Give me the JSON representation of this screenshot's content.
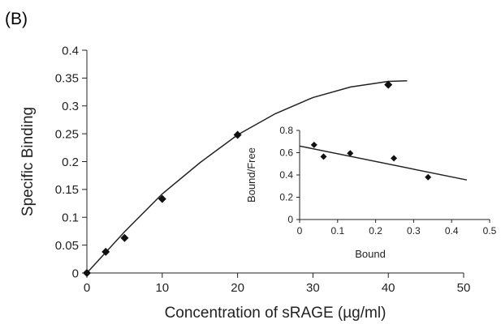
{
  "panel_label": "(B)",
  "chart_data": [
    {
      "type": "scatter",
      "xlabel": "Concentration of sRAGE (µg/ml)",
      "ylabel": "Specific Binding",
      "xlim": [
        0,
        50
      ],
      "ylim": [
        0,
        0.4
      ],
      "xticks": [
        "0",
        "10",
        "20",
        "30",
        "40",
        "50"
      ],
      "yticks": [
        "0",
        "0.05",
        "0.1",
        "0.15",
        "0.2",
        "0.25",
        "0.3",
        "0.35",
        "0.4"
      ],
      "grid": false,
      "points": [
        {
          "x": 0,
          "y": 0
        },
        {
          "x": 2.5,
          "y": 0.038
        },
        {
          "x": 5,
          "y": 0.063
        },
        {
          "x": 10,
          "y": 0.133
        },
        {
          "x": 20,
          "y": 0.248
        },
        {
          "x": 40,
          "y": 0.338
        }
      ],
      "fit_curve": [
        {
          "x": 0,
          "y": 0
        },
        {
          "x": 5,
          "y": 0.074
        },
        {
          "x": 10,
          "y": 0.142
        },
        {
          "x": 15,
          "y": 0.198
        },
        {
          "x": 20,
          "y": 0.248
        },
        {
          "x": 25,
          "y": 0.286
        },
        {
          "x": 30,
          "y": 0.315
        },
        {
          "x": 35,
          "y": 0.334
        },
        {
          "x": 40,
          "y": 0.344
        },
        {
          "x": 42.5,
          "y": 0.345
        }
      ]
    },
    {
      "type": "scatter",
      "xlabel": "Bound",
      "ylabel": "Bound/Free",
      "xlim": [
        0,
        0.5
      ],
      "ylim": [
        0,
        0.8
      ],
      "xticks": [
        "0",
        "0.1",
        "0.2",
        "0.3",
        "0.4",
        "0.5"
      ],
      "yticks": [
        "0",
        "0.2",
        "0.4",
        "0.6",
        "0.8"
      ],
      "grid": false,
      "points": [
        {
          "x": 0.038,
          "y": 0.67
        },
        {
          "x": 0.063,
          "y": 0.565
        },
        {
          "x": 0.133,
          "y": 0.595
        },
        {
          "x": 0.248,
          "y": 0.55
        },
        {
          "x": 0.338,
          "y": 0.38
        }
      ],
      "fit_line": [
        {
          "x": 0,
          "y": 0.66
        },
        {
          "x": 0.44,
          "y": 0.355
        }
      ]
    }
  ]
}
